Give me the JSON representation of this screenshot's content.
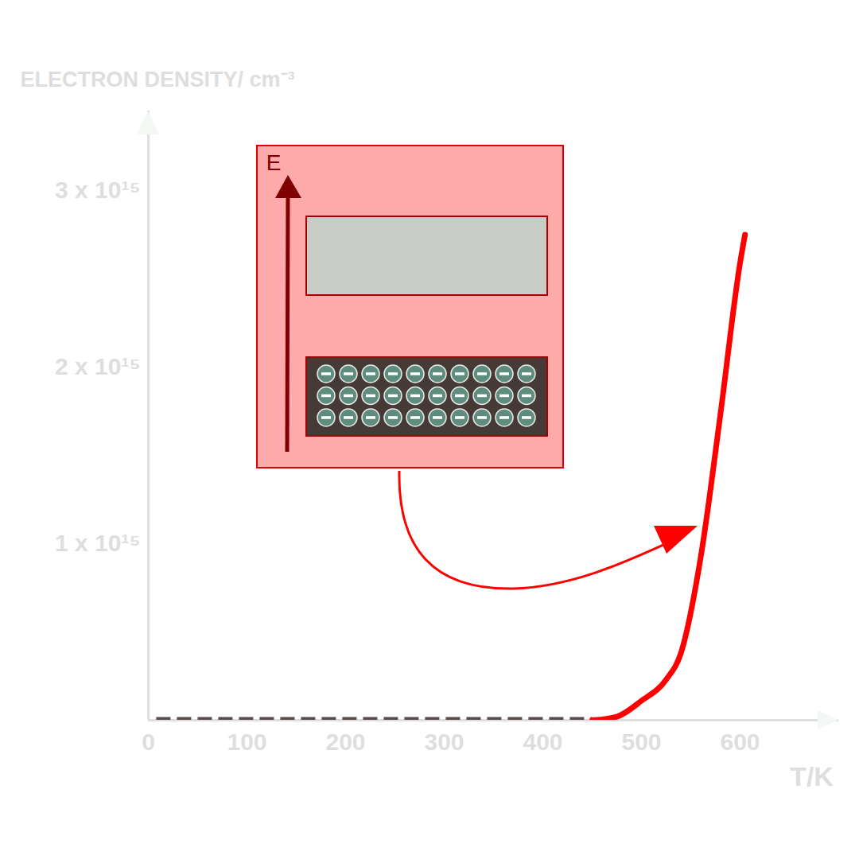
{
  "chart_data": {
    "type": "line",
    "y_label": "ELECTRON DENSITY/ cm⁻³",
    "x_label": "T/K",
    "xlim": [
      0,
      700
    ],
    "ylim": [
      0,
      3450000000000000.0
    ],
    "xticks": [
      0,
      100,
      200,
      300,
      400,
      500,
      600
    ],
    "yticks": [
      {
        "value": 1000000000000000.0,
        "label": "1 x 10¹⁵"
      },
      {
        "value": 2000000000000000.0,
        "label": "2 x 10¹⁵"
      },
      {
        "value": 3000000000000000.0,
        "label": "3 x 10¹⁵"
      }
    ],
    "grid": false,
    "series": [
      {
        "color": "#5a4a4a",
        "line_style": "dashed",
        "x": [
          8,
          450
        ],
        "values": [
          0,
          0
        ]
      },
      {
        "color": "#ff0000",
        "line_style": "solid",
        "x": [
          450,
          475,
          500,
          525,
          540,
          560,
          580,
          600,
          605
        ],
        "values": [
          0,
          20000000000000.0,
          110000000000000.0,
          230000000000000.0,
          380000000000000.0,
          920000000000000.0,
          1730000000000000.0,
          2590000000000000.0,
          2750000000000000.0
        ]
      }
    ],
    "annotations": [
      {
        "text": "E"
      }
    ]
  }
}
